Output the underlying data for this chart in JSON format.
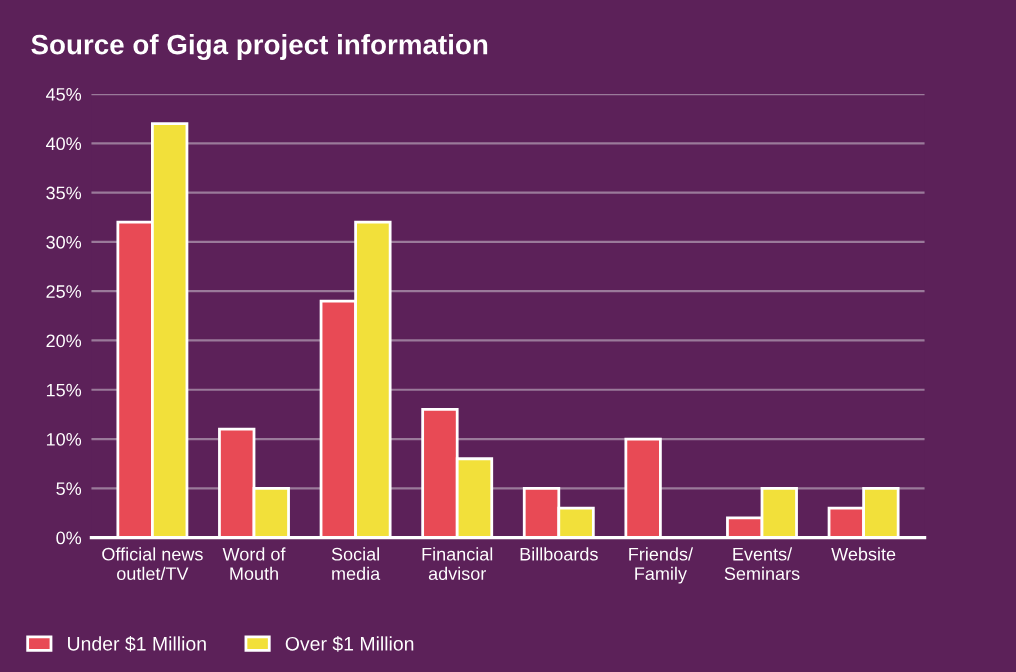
{
  "chart_data": {
    "type": "bar",
    "title": "Source of Giga project information",
    "categories": [
      "Official news\noutlet/TV",
      "Word of\nMouth",
      "Social\nmedia",
      "Financial\nadvisor",
      "Billboards",
      "Friends/\nFamily",
      "Events/\nSeminars",
      "Website"
    ],
    "series": [
      {
        "name": "Under $1 Million",
        "color": "#e84a55",
        "values": [
          32,
          11,
          24,
          13,
          5,
          10,
          2,
          3
        ]
      },
      {
        "name": "Over $1 Million",
        "color": "#f2e03a",
        "values": [
          42,
          5,
          32,
          8,
          3,
          null,
          5,
          5
        ]
      }
    ],
    "ylim": [
      0,
      45
    ],
    "yticks": [
      {
        "value": 0,
        "label": "0%"
      },
      {
        "value": 5,
        "label": "5%"
      },
      {
        "value": 10,
        "label": "10%"
      },
      {
        "value": 15,
        "label": "15%"
      },
      {
        "value": 20,
        "label": "20%"
      },
      {
        "value": 25,
        "label": "25%"
      },
      {
        "value": 30,
        "label": "30%"
      },
      {
        "value": 35,
        "label": "35%"
      },
      {
        "value": 40,
        "label": "40%"
      },
      {
        "value": 45,
        "label": "45%"
      }
    ],
    "grid": "y",
    "legend": "bottom left"
  }
}
